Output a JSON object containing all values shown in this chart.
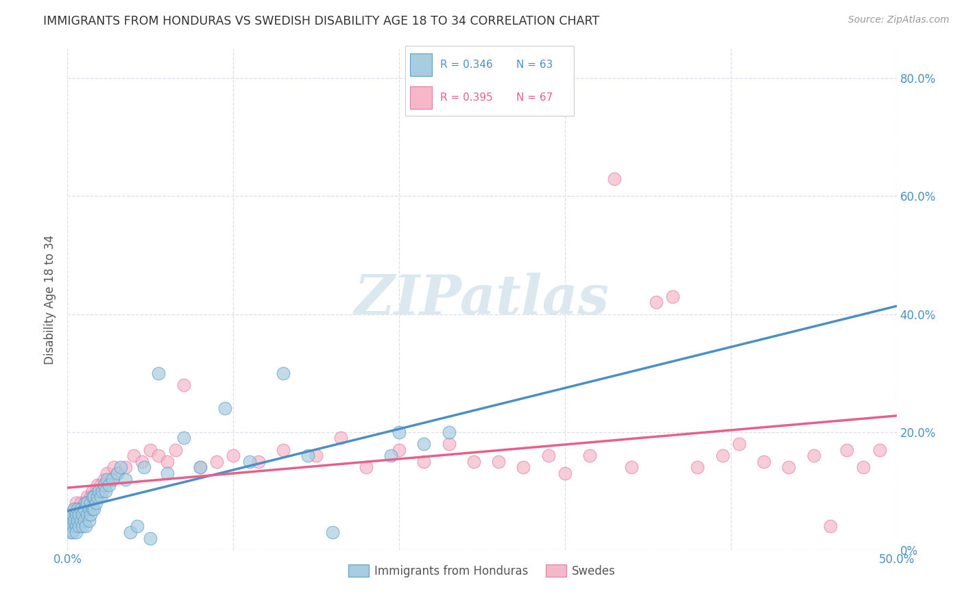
{
  "title": "IMMIGRANTS FROM HONDURAS VS SWEDISH DISABILITY AGE 18 TO 34 CORRELATION CHART",
  "source": "Source: ZipAtlas.com",
  "legend_label1": "Immigrants from Honduras",
  "legend_label2": "Swedes",
  "r1": 0.346,
  "n1": 63,
  "r2": 0.395,
  "n2": 67,
  "xlim": [
    0.0,
    0.5
  ],
  "ylim": [
    0.0,
    0.85
  ],
  "color_blue": "#a8cce0",
  "color_pink": "#f4b8c8",
  "color_blue_dark": "#5b9dc9",
  "color_pink_dark": "#e87aaa",
  "color_blue_line": "#4a90c4",
  "color_pink_line": "#e8608a",
  "color_blue_text": "#4a90c4",
  "color_pink_text": "#e8608a",
  "color_title": "#333333",
  "background_color": "#ffffff",
  "grid_color": "#ddddee",
  "blue_scatter_x": [
    0.001,
    0.002,
    0.002,
    0.003,
    0.003,
    0.003,
    0.004,
    0.004,
    0.005,
    0.005,
    0.005,
    0.006,
    0.006,
    0.007,
    0.007,
    0.008,
    0.008,
    0.009,
    0.009,
    0.01,
    0.01,
    0.011,
    0.011,
    0.012,
    0.012,
    0.013,
    0.013,
    0.014,
    0.014,
    0.015,
    0.015,
    0.016,
    0.016,
    0.017,
    0.018,
    0.019,
    0.02,
    0.021,
    0.022,
    0.023,
    0.024,
    0.025,
    0.027,
    0.03,
    0.032,
    0.035,
    0.038,
    0.042,
    0.046,
    0.05,
    0.055,
    0.06,
    0.07,
    0.08,
    0.095,
    0.11,
    0.13,
    0.145,
    0.16,
    0.195,
    0.2,
    0.215,
    0.23
  ],
  "blue_scatter_y": [
    0.04,
    0.03,
    0.05,
    0.04,
    0.06,
    0.03,
    0.05,
    0.07,
    0.04,
    0.06,
    0.03,
    0.05,
    0.07,
    0.04,
    0.06,
    0.05,
    0.07,
    0.04,
    0.06,
    0.05,
    0.07,
    0.04,
    0.08,
    0.06,
    0.08,
    0.05,
    0.07,
    0.06,
    0.08,
    0.07,
    0.09,
    0.07,
    0.09,
    0.08,
    0.09,
    0.1,
    0.09,
    0.1,
    0.11,
    0.1,
    0.12,
    0.11,
    0.12,
    0.13,
    0.14,
    0.12,
    0.03,
    0.04,
    0.14,
    0.02,
    0.3,
    0.13,
    0.19,
    0.14,
    0.24,
    0.15,
    0.3,
    0.16,
    0.03,
    0.16,
    0.2,
    0.18,
    0.2
  ],
  "pink_scatter_x": [
    0.001,
    0.002,
    0.003,
    0.003,
    0.004,
    0.005,
    0.005,
    0.006,
    0.007,
    0.007,
    0.008,
    0.009,
    0.01,
    0.011,
    0.012,
    0.013,
    0.014,
    0.015,
    0.016,
    0.017,
    0.018,
    0.019,
    0.02,
    0.022,
    0.024,
    0.026,
    0.028,
    0.03,
    0.035,
    0.04,
    0.045,
    0.05,
    0.055,
    0.06,
    0.065,
    0.07,
    0.08,
    0.09,
    0.1,
    0.115,
    0.13,
    0.15,
    0.165,
    0.18,
    0.2,
    0.215,
    0.23,
    0.245,
    0.26,
    0.275,
    0.29,
    0.3,
    0.315,
    0.33,
    0.34,
    0.355,
    0.365,
    0.38,
    0.395,
    0.405,
    0.42,
    0.435,
    0.45,
    0.46,
    0.47,
    0.48,
    0.49
  ],
  "pink_scatter_y": [
    0.05,
    0.04,
    0.06,
    0.05,
    0.07,
    0.05,
    0.08,
    0.06,
    0.07,
    0.05,
    0.08,
    0.06,
    0.08,
    0.07,
    0.09,
    0.08,
    0.09,
    0.1,
    0.09,
    0.1,
    0.11,
    0.1,
    0.11,
    0.12,
    0.13,
    0.12,
    0.14,
    0.13,
    0.14,
    0.16,
    0.15,
    0.17,
    0.16,
    0.15,
    0.17,
    0.28,
    0.14,
    0.15,
    0.16,
    0.15,
    0.17,
    0.16,
    0.19,
    0.14,
    0.17,
    0.15,
    0.18,
    0.15,
    0.15,
    0.14,
    0.16,
    0.13,
    0.16,
    0.63,
    0.14,
    0.42,
    0.43,
    0.14,
    0.16,
    0.18,
    0.15,
    0.14,
    0.16,
    0.04,
    0.17,
    0.14,
    0.17
  ]
}
